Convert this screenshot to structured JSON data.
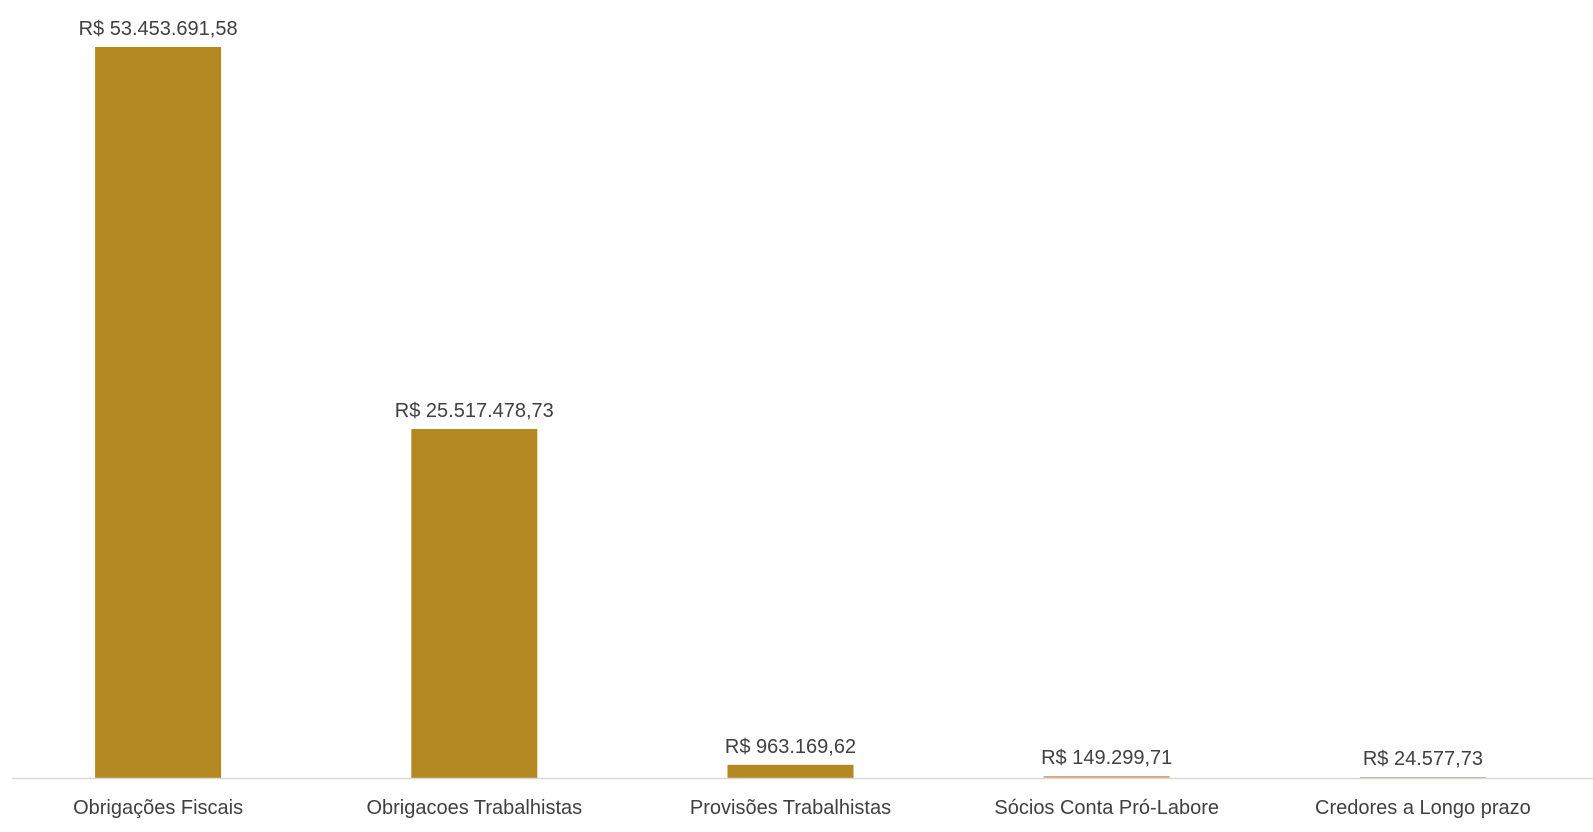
{
  "chart_data": {
    "type": "bar",
    "categories": [
      "Obrigações Fiscais",
      "Obrigacoes Trabalhistas",
      "Provisões Trabalhistas",
      "Sócios Conta Pró-Labore",
      "Credores a Longo prazo"
    ],
    "values": [
      53453691.58,
      25517478.73,
      963169.62,
      149299.71,
      24577.73
    ],
    "value_labels": [
      "R$ 53.453.691,58",
      "R$ 25.517.478,73",
      "R$ 963.169,62",
      "R$ 149.299,71",
      "R$ 24.577,73"
    ],
    "bar_colors": [
      "#b38820",
      "#b38820",
      "#b38820",
      "#d9a77a",
      "#d9a77a"
    ],
    "axis_color": "#d9d9d9",
    "text_color": "#404040",
    "ylim": [
      0,
      53453691.58
    ],
    "grid": false,
    "legend": "none"
  }
}
